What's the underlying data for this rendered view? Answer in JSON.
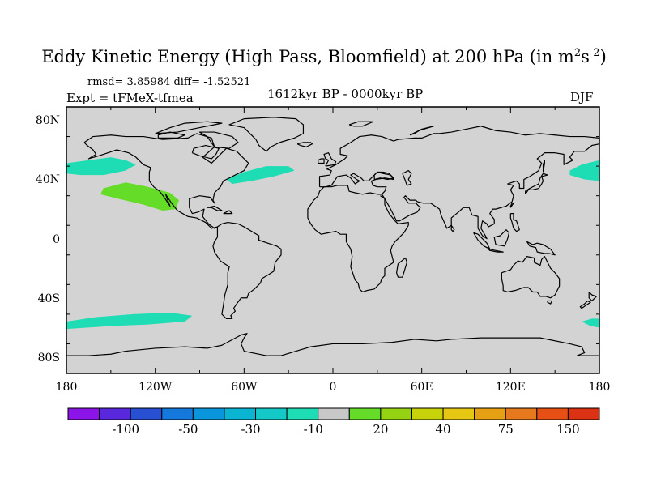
{
  "title": {
    "main": "Eddy Kinetic Energy (High Pass, Bloomfield) at 200 hPa (in m",
    "sup1": "2",
    "mid": "s",
    "sup2": "-2",
    "end": ")"
  },
  "stats": "rmsd= 3.85984 diff= -1.52521",
  "experiment": "Expt = tFMeX-tfmea",
  "period": "1612kyr BP - 0000kyr BP",
  "season": "DJF",
  "map": {
    "background_color": "#d3d3d3",
    "coast_color": "#000000",
    "lon_labels": [
      "180",
      "120W",
      "60W",
      "0",
      "60E",
      "120E",
      "180"
    ],
    "lat_labels": [
      "80N",
      "40N",
      "0",
      "40S",
      "80S"
    ],
    "anomaly_regions": [
      {
        "name": "north-pacific-east",
        "level": "-10",
        "color": "#1edcb4"
      },
      {
        "name": "subtropical-east-pacific",
        "level": "20",
        "color": "#64dc28"
      },
      {
        "name": "north-atlantic",
        "level": "-10",
        "color": "#1edcb4"
      },
      {
        "name": "north-pacific-west",
        "level": "-10",
        "color": "#1edcb4"
      },
      {
        "name": "south-pacific",
        "level": "-10",
        "color": "#1edcb4"
      },
      {
        "name": "south-pacific-west",
        "level": "-10",
        "color": "#1edcb4"
      }
    ]
  },
  "colorbar": {
    "colors": [
      "#8c14e6",
      "#5a28dc",
      "#2850d2",
      "#1478dc",
      "#0a96dc",
      "#0ab4d2",
      "#14c8c8",
      "#1edcb4",
      "#c8c8c8",
      "#64dc28",
      "#96d214",
      "#c8d20a",
      "#e6c814",
      "#e6a014",
      "#e6781e",
      "#e65014",
      "#dc3214"
    ],
    "labels": [
      "-100",
      "-50",
      "-30",
      "-10",
      "20",
      "40",
      "75",
      "150"
    ]
  }
}
